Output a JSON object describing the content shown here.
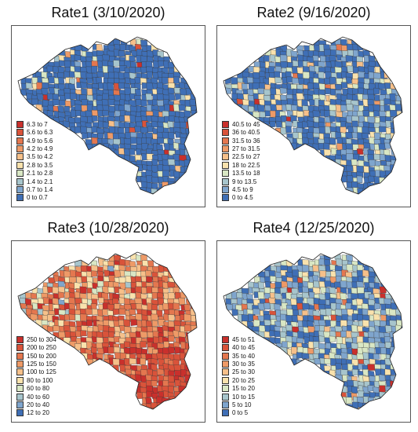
{
  "panels": [
    {
      "title": "Rate1 (3/10/2020)",
      "legend": [
        {
          "label": "6.3 to 7",
          "color": "#c9302c"
        },
        {
          "label": "5.6 to 6.3",
          "color": "#d9533a"
        },
        {
          "label": "4.9 to 5.6",
          "color": "#e4774f"
        },
        {
          "label": "4.2 to 4.9",
          "color": "#ee9a67"
        },
        {
          "label": "3.5 to 4.2",
          "color": "#f6c08a"
        },
        {
          "label": "2.8 to 3.5",
          "color": "#f9e2ad"
        },
        {
          "label": "2.1 to 2.8",
          "color": "#d9e7c4"
        },
        {
          "label": "1.4 to 2.1",
          "color": "#a7c5cc"
        },
        {
          "label": "0.7 to 1.4",
          "color": "#7fa5cd"
        },
        {
          "label": "0 to 0.7",
          "color": "#3f6fb6"
        }
      ],
      "class_weights": [
        1,
        1,
        1,
        1,
        2,
        3,
        3,
        3,
        3,
        82
      ]
    },
    {
      "title": "Rate2 (9/16/2020)",
      "legend": [
        {
          "label": "40.5 to 45",
          "color": "#c9302c"
        },
        {
          "label": "36 to 40.5",
          "color": "#d9533a"
        },
        {
          "label": "31.5 to 36",
          "color": "#e4774f"
        },
        {
          "label": "27 to 31.5",
          "color": "#ee9a67"
        },
        {
          "label": "22.5 to 27",
          "color": "#f6c08a"
        },
        {
          "label": "18 to 22.5",
          "color": "#f9e2ad"
        },
        {
          "label": "13.5 to 18",
          "color": "#d9e7c4"
        },
        {
          "label": "9 to 13.5",
          "color": "#a7c5cc"
        },
        {
          "label": "4.5 to 9",
          "color": "#7fa5cd"
        },
        {
          "label": "0 to 4.5",
          "color": "#3f6fb6"
        }
      ],
      "class_weights": [
        1,
        1,
        1,
        1,
        2,
        5,
        8,
        10,
        15,
        56
      ]
    },
    {
      "title": "Rate3 (10/28/2020)",
      "legend": [
        {
          "label": "250 to 304",
          "color": "#c9302c"
        },
        {
          "label": "200 to 250",
          "color": "#d9533a"
        },
        {
          "label": "150 to 200",
          "color": "#e4774f"
        },
        {
          "label": "125 to 150",
          "color": "#ee9a67"
        },
        {
          "label": "100 to 125",
          "color": "#f6c08a"
        },
        {
          "label": "80 to 100",
          "color": "#f9e2ad"
        },
        {
          "label": "60 to 80",
          "color": "#d9e7c4"
        },
        {
          "label": "40 to 60",
          "color": "#a7c5cc"
        },
        {
          "label": "20 to 40",
          "color": "#7fa5cd"
        },
        {
          "label": "12 to 20",
          "color": "#3f6fb6"
        }
      ],
      "class_weights": [
        8,
        14,
        18,
        14,
        12,
        10,
        8,
        7,
        6,
        3
      ]
    },
    {
      "title": "Rate4 (12/25/2020)",
      "legend": [
        {
          "label": "45 to 51",
          "color": "#c9302c"
        },
        {
          "label": "40 to 45",
          "color": "#d9533a"
        },
        {
          "label": "35 to 40",
          "color": "#e4774f"
        },
        {
          "label": "30 to 35",
          "color": "#ee9a67"
        },
        {
          "label": "25 to 30",
          "color": "#f6c08a"
        },
        {
          "label": "20 to 25",
          "color": "#f9e2ad"
        },
        {
          "label": "15 to 20",
          "color": "#d9e7c4"
        },
        {
          "label": "10 to 15",
          "color": "#a7c5cc"
        },
        {
          "label": "5 to 10",
          "color": "#7fa5cd"
        },
        {
          "label": "0 to 5",
          "color": "#3f6fb6"
        }
      ],
      "class_weights": [
        2,
        1,
        1,
        2,
        3,
        6,
        14,
        18,
        22,
        31
      ]
    }
  ]
}
